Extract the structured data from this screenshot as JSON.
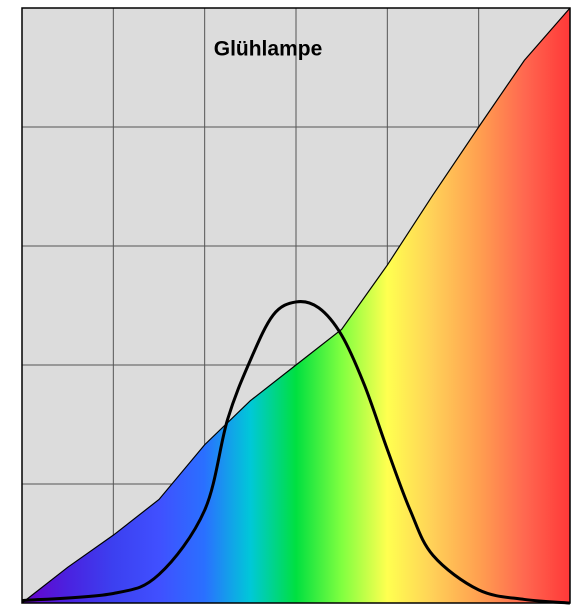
{
  "chart_data": {
    "type": "area",
    "title": "Glühlampe",
    "xlim": [
      0,
      6
    ],
    "ylim": [
      0,
      5
    ],
    "xticks": [
      0,
      1,
      2,
      3,
      4,
      5,
      6
    ],
    "yticks": [
      0,
      1,
      2,
      3,
      4,
      5
    ],
    "grid": true,
    "background": "#dcdcdc",
    "series": [
      {
        "type": "area",
        "colors": [
          "#6a00c8",
          "#4a22e0",
          "#3c40f0",
          "#4050ff",
          "#2a70ff",
          "#00c8d8",
          "#00e040",
          "#80ff40",
          "#ffff50",
          "#ffd058",
          "#ffa050",
          "#ff6850",
          "#ff3838"
        ],
        "outline": "#000000",
        "x": [
          0,
          0.5,
          1,
          1.5,
          2,
          2.5,
          3,
          3.5,
          4,
          4.5,
          5,
          5.5,
          6
        ],
        "values": [
          0,
          0.3,
          0.57,
          0.87,
          1.33,
          1.7,
          2.0,
          2.3,
          2.84,
          3.43,
          4.0,
          4.56,
          5.0
        ]
      },
      {
        "type": "line",
        "color": "#000000",
        "x": [
          0,
          1,
          1.5,
          2,
          2.25,
          2.5,
          2.75,
          3,
          3.25,
          3.5,
          3.75,
          4,
          4.25,
          4.5,
          5,
          5.5,
          6
        ],
        "values": [
          0.02,
          0.08,
          0.24,
          0.78,
          1.54,
          2.04,
          2.42,
          2.53,
          2.48,
          2.25,
          1.83,
          1.29,
          0.78,
          0.4,
          0.11,
          0.03,
          0.0
        ]
      }
    ]
  }
}
